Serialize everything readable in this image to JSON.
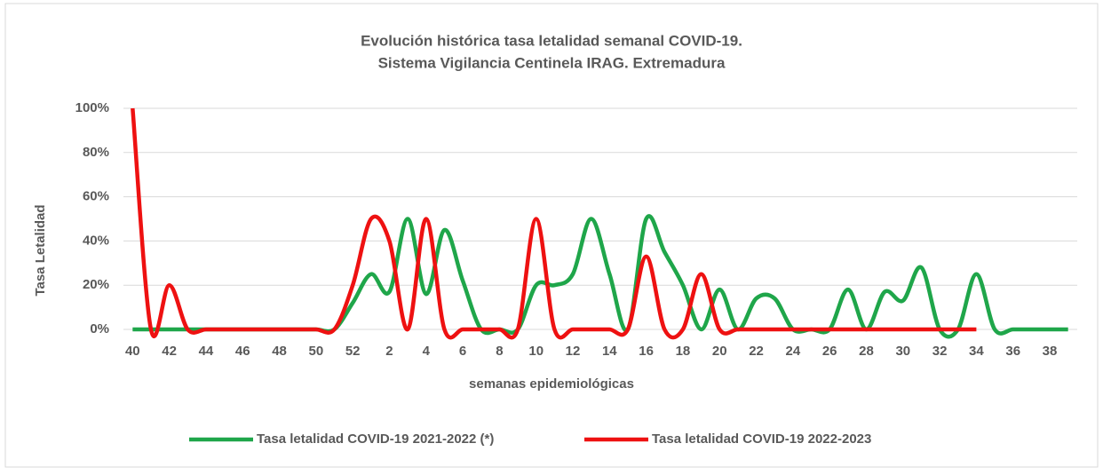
{
  "chart_data": {
    "type": "line",
    "title": "Evolución histórica tasa letalidad semanal COVID-19.",
    "subtitle": "Sistema  Vigilancia Centinela IRAG. Extremadura",
    "x_label": "semanas epidemiológicas",
    "y_label": "Tasa Letalidad",
    "categories": [
      "40",
      null,
      "42",
      null,
      "44",
      null,
      "46",
      null,
      "48",
      null,
      "50",
      null,
      "52",
      null,
      "2",
      null,
      "4",
      null,
      "6",
      null,
      "8",
      null,
      "10",
      null,
      "12",
      null,
      "14",
      null,
      "16",
      null,
      "18",
      null,
      "20",
      null,
      "22",
      null,
      "24",
      null,
      "26",
      null,
      "28",
      null,
      "30",
      null,
      "32",
      null,
      "34",
      null,
      "36",
      null,
      "38",
      null
    ],
    "series": [
      {
        "name": "Tasa letalidad COVID-19 2021-2022 (*)",
        "color": "#1fa64a",
        "values": [
          0,
          0,
          0,
          0,
          0,
          0,
          0,
          0,
          0,
          0,
          0,
          0,
          12,
          25,
          17,
          50,
          16,
          45,
          22,
          0,
          0,
          0,
          20,
          20,
          25,
          50,
          25,
          0,
          50,
          35,
          20,
          0,
          18,
          0,
          14,
          14,
          0,
          0,
          0,
          18,
          0,
          17,
          13,
          28,
          0,
          0,
          25,
          0,
          0,
          0,
          0,
          0
        ]
      },
      {
        "name": "Tasa letalidad COVID-19 2022-2023",
        "color": "#ee1111",
        "values": [
          100,
          0,
          20,
          0,
          0,
          0,
          0,
          0,
          0,
          0,
          0,
          0,
          20,
          50,
          40,
          0,
          50,
          0,
          0,
          0,
          0,
          0,
          50,
          0,
          0,
          0,
          0,
          0,
          33,
          0,
          0,
          25,
          0,
          0,
          0,
          0,
          0,
          0,
          0,
          0,
          0,
          0,
          0,
          0,
          0,
          0,
          0,
          null,
          null,
          null,
          null,
          null
        ]
      }
    ],
    "ylim": [
      0,
      100
    ],
    "yticks": [
      {
        "value": 0,
        "label": "0%"
      },
      {
        "value": 20,
        "label": "20%"
      },
      {
        "value": 40,
        "label": "40%"
      },
      {
        "value": 60,
        "label": "60%"
      },
      {
        "value": 80,
        "label": "80%"
      },
      {
        "value": 100,
        "label": "100%"
      }
    ],
    "grid": true,
    "legend": "bottom"
  }
}
